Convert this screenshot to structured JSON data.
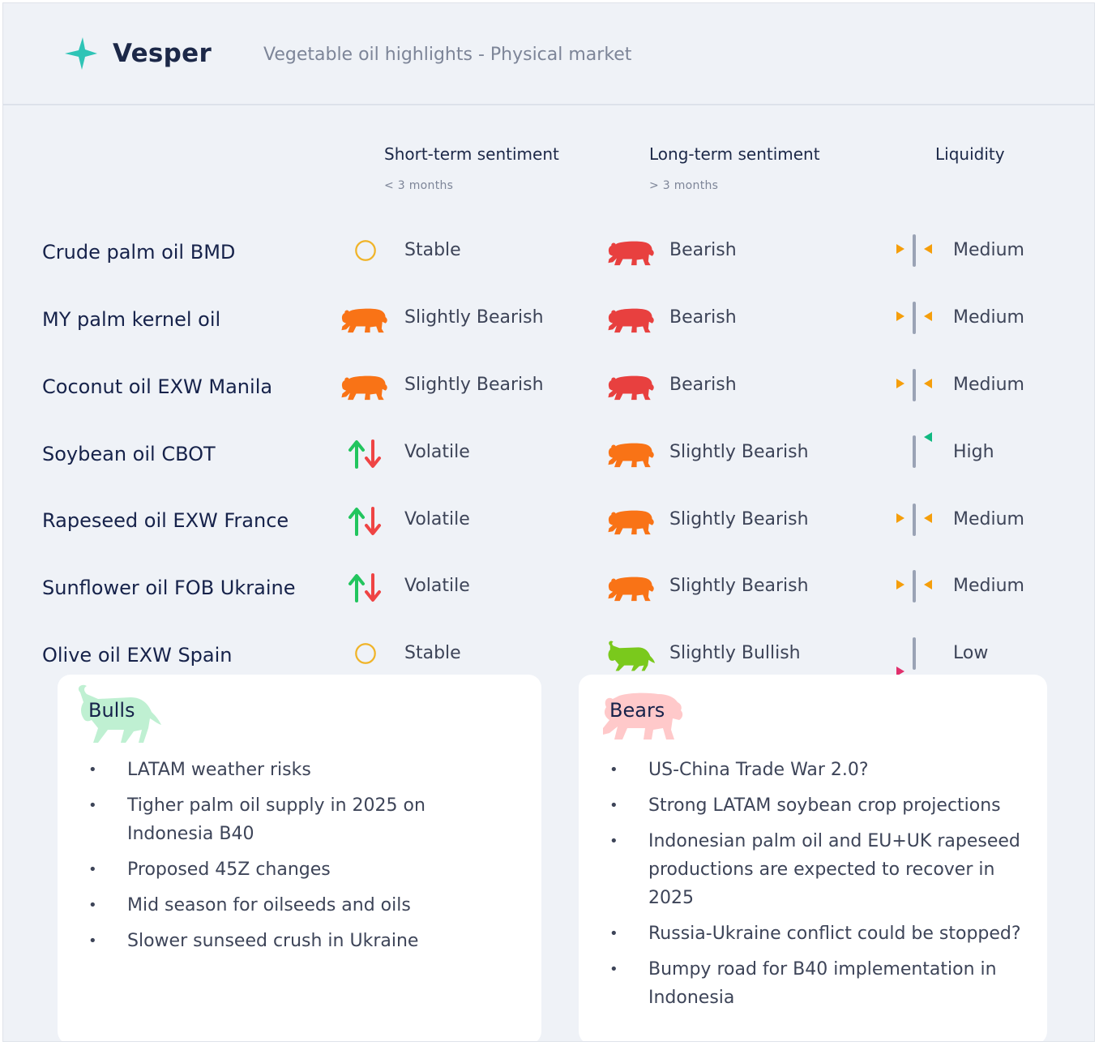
{
  "header": {
    "brand": "Vesper",
    "subtitle": "Vegetable oil highlights - Physical market"
  },
  "columns": {
    "short": {
      "label": "Short-term sentiment",
      "sub": "< 3 months"
    },
    "long": {
      "label": "Long-term sentiment",
      "sub": "> 3 months"
    },
    "liquidity": {
      "label": "Liquidity"
    }
  },
  "colors": {
    "bearish": "#e8403f",
    "slightly_bearish": "#f97316",
    "slightly_bullish": "#7ac91c",
    "stable": "#f0b429",
    "up_arrow": "#22c55e",
    "down_arrow": "#ef4444",
    "medium_marker": "#f59e0b",
    "high_marker": "#10b981",
    "low_marker": "#e1306c",
    "bulls_badge": "#bff0d2",
    "bears_badge": "#ffc9ca"
  },
  "rows": [
    {
      "name": "Crude palm oil BMD",
      "short": {
        "icon": "stable-circle-icon",
        "text": "Stable"
      },
      "long": {
        "icon": "bearish-bear-icon",
        "text": "Bearish"
      },
      "liquidity": {
        "level": "medium",
        "text": "Medium"
      }
    },
    {
      "name": "MY palm kernel oil",
      "short": {
        "icon": "slightly-bearish-bear-icon",
        "text": "Slightly Bearish"
      },
      "long": {
        "icon": "bearish-bear-icon",
        "text": "Bearish"
      },
      "liquidity": {
        "level": "medium",
        "text": "Medium"
      }
    },
    {
      "name": "Coconut oil EXW Manila",
      "short": {
        "icon": "slightly-bearish-bear-icon",
        "text": "Slightly Bearish"
      },
      "long": {
        "icon": "bearish-bear-icon",
        "text": "Bearish"
      },
      "liquidity": {
        "level": "medium",
        "text": "Medium"
      }
    },
    {
      "name": "Soybean oil CBOT",
      "short": {
        "icon": "volatile-arrows-icon",
        "text": "Volatile"
      },
      "long": {
        "icon": "slightly-bearish-bear-icon",
        "text": "Slightly Bearish"
      },
      "liquidity": {
        "level": "high",
        "text": "High"
      }
    },
    {
      "name": "Rapeseed oil EXW France",
      "short": {
        "icon": "volatile-arrows-icon",
        "text": "Volatile"
      },
      "long": {
        "icon": "slightly-bearish-bear-icon",
        "text": "Slightly Bearish"
      },
      "liquidity": {
        "level": "medium",
        "text": "Medium"
      }
    },
    {
      "name": "Sunflower oil FOB Ukraine",
      "short": {
        "icon": "volatile-arrows-icon",
        "text": "Volatile"
      },
      "long": {
        "icon": "slightly-bearish-bear-icon",
        "text": "Slightly Bearish"
      },
      "liquidity": {
        "level": "medium",
        "text": "Medium"
      }
    },
    {
      "name": "Olive oil EXW Spain",
      "short": {
        "icon": "stable-circle-icon",
        "text": "Stable"
      },
      "long": {
        "icon": "slightly-bullish-bull-icon",
        "text": "Slightly Bullish"
      },
      "liquidity": {
        "level": "low",
        "text": "Low"
      }
    }
  ],
  "bulls": {
    "title": "Bulls",
    "icon": "bull-icon",
    "points": [
      "LATAM weather risks",
      "Tigher palm oil supply in 2025 on Indonesia B40",
      "Proposed 45Z changes",
      "Mid season for oilseeds and oils",
      "Slower sunseed crush in Ukraine"
    ]
  },
  "bears": {
    "title": "Bears",
    "icon": "bear-icon",
    "points": [
      "US-China Trade War 2.0?",
      "Strong LATAM soybean crop projections",
      "Indonesian palm oil and EU+UK rapeseed productions are expected to recover in 2025",
      "Russia-Ukraine conflict could be stopped?",
      "Bumpy road for B40 implementation in Indonesia"
    ]
  }
}
